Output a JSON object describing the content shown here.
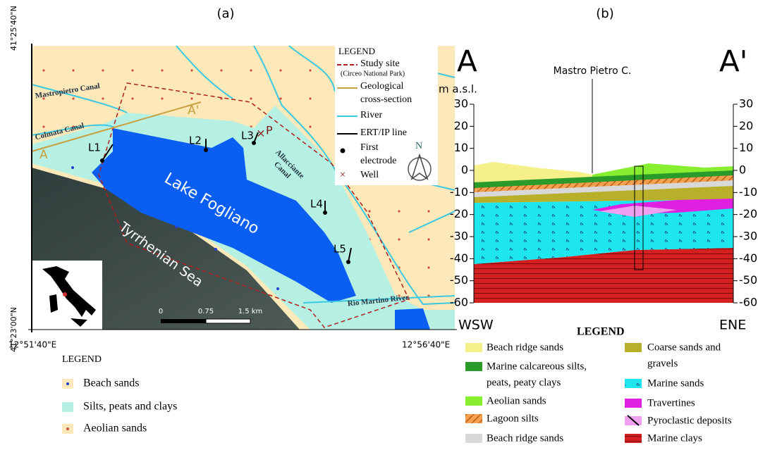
{
  "panel_a": {
    "label": "(a)",
    "coords": {
      "lat_top": "41°25'40\"N",
      "lat_bottom": "41°23'00\"N",
      "lon_left": "12°51'40\"E",
      "lon_right": "12°56'40\"E"
    },
    "places": {
      "mastropietro": "Mastropietro Canal",
      "colmata": "Colmata Canal",
      "lake": "Lake Fogliano",
      "sea": "Tyrrhenian Sea",
      "allacciante": [
        "Allacciante",
        "Canal"
      ],
      "rio_martino": "Rio Martino River"
    },
    "section_ends": [
      "A",
      "A'"
    ],
    "ert_lines": [
      "L1",
      "L2",
      "L3",
      "L4",
      "L5"
    ],
    "well": "P",
    "scale": [
      "0",
      "0.75",
      "1.5 km"
    ],
    "north": "N",
    "legend": {
      "title": "LEGEND",
      "study_site": "Study site",
      "park": "(Circeo National Park)",
      "cross_section": [
        "Geological",
        "cross-section"
      ],
      "river": "River",
      "ert": "ERT/IP line",
      "electrode": [
        "First",
        "electrode"
      ],
      "well": "Well"
    }
  },
  "units_legend": {
    "title": "LEGEND",
    "items": [
      "Beach sands",
      "Silts, peats and clays",
      "Aeolian sands"
    ]
  },
  "panel_b": {
    "label": "(b)",
    "start": "A",
    "end": "A'",
    "borehole": "Mastro Pietro C.",
    "unit": "m a.s.l.",
    "yticks": [
      30,
      20,
      10,
      0,
      -10,
      -20,
      -30,
      -40,
      -50,
      -60
    ],
    "west": "WSW",
    "east": "ENE",
    "legend": {
      "title": "LEGEND",
      "left": [
        [
          "Beach ridge sands"
        ],
        [
          "Marine calcareous silts,",
          "peats, peaty clays"
        ],
        [
          "Aeolian sands"
        ],
        [
          "Lagoon silts"
        ],
        [
          "Beach ridge sands"
        ]
      ],
      "right": [
        [
          "Coarse sands and",
          "gravels"
        ],
        [
          "Marine sands"
        ],
        [
          "Travertines"
        ],
        [
          "Pyroclastic deposits"
        ],
        [
          "Marine clays"
        ]
      ]
    }
  }
}
